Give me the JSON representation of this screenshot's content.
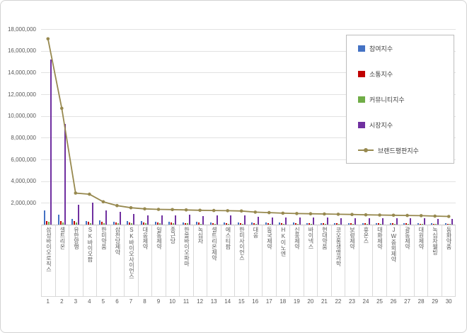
{
  "chart_data": {
    "type": "bar",
    "subtype": "combo-bar-line",
    "title": "",
    "y_axis": {
      "min": 0,
      "max": 18000000,
      "tick_step": 2000000,
      "ticks": [
        {
          "value": 18000000,
          "label": "18,000,000"
        },
        {
          "value": 16000000,
          "label": "16,000,000"
        },
        {
          "value": 14000000,
          "label": "14,000,000"
        },
        {
          "value": 12000000,
          "label": "12,000,000"
        },
        {
          "value": 10000000,
          "label": "10,000,000"
        },
        {
          "value": 8000000,
          "label": "8,000,000"
        },
        {
          "value": 6000000,
          "label": "6,000,000"
        },
        {
          "value": 4000000,
          "label": "4,000,000"
        },
        {
          "value": 2000000,
          "label": "2,000,000"
        }
      ],
      "grid": true
    },
    "legend_position": "right-inside",
    "categories": [
      {
        "rank": 1,
        "label": "삼성바이오로직스"
      },
      {
        "rank": 2,
        "label": "셀트리온"
      },
      {
        "rank": 3,
        "label": "유한양행"
      },
      {
        "rank": 4,
        "label": "SK바이오팜"
      },
      {
        "rank": 5,
        "label": "한미약품"
      },
      {
        "rank": 6,
        "label": "삼천당제약"
      },
      {
        "rank": 7,
        "label": "SK바이오사이언스"
      },
      {
        "rank": 8,
        "label": "대웅제약"
      },
      {
        "rank": 9,
        "label": "일동제약"
      },
      {
        "rank": 10,
        "label": "종근당"
      },
      {
        "rank": 11,
        "label": "한올바이오파마"
      },
      {
        "rank": 12,
        "label": "녹십자"
      },
      {
        "rank": 13,
        "label": "셀트리온제약"
      },
      {
        "rank": 14,
        "label": "에스티팜"
      },
      {
        "rank": 15,
        "label": "한미사이언스"
      },
      {
        "rank": 16,
        "label": "대웅"
      },
      {
        "rank": 17,
        "label": "동국제약"
      },
      {
        "rank": 18,
        "label": "HK이노엔"
      },
      {
        "rank": 19,
        "label": "신풍제약"
      },
      {
        "rank": 20,
        "label": "바이넥스"
      },
      {
        "rank": 21,
        "label": "현대약품"
      },
      {
        "rank": 22,
        "label": "코오롱생명과학"
      },
      {
        "rank": 23,
        "label": "보령제약"
      },
      {
        "rank": 24,
        "label": "휴온스"
      },
      {
        "rank": 25,
        "label": "대화제약"
      },
      {
        "rank": 26,
        "label": "JW중외제약"
      },
      {
        "rank": 27,
        "label": "광동제약"
      },
      {
        "rank": 28,
        "label": "대원제약"
      },
      {
        "rank": 29,
        "label": "녹십자웰빙"
      },
      {
        "rank": 30,
        "label": "동화약품"
      }
    ],
    "series": [
      {
        "name": "참여지수",
        "type": "bar",
        "color": "#4472C4",
        "values": [
          1300000,
          900000,
          500000,
          350000,
          400000,
          250000,
          300000,
          300000,
          250000,
          250000,
          200000,
          250000,
          200000,
          200000,
          180000,
          180000,
          200000,
          180000,
          180000,
          160000,
          150000,
          150000,
          150000,
          140000,
          140000,
          130000,
          130000,
          120000,
          120000,
          110000
        ]
      },
      {
        "name": "소통지수",
        "type": "bar",
        "color": "#C00000",
        "values": [
          350000,
          350000,
          350000,
          250000,
          250000,
          200000,
          200000,
          200000,
          180000,
          180000,
          150000,
          180000,
          150000,
          150000,
          140000,
          140000,
          150000,
          140000,
          130000,
          130000,
          120000,
          120000,
          110000,
          110000,
          100000,
          100000,
          100000,
          90000,
          90000,
          90000
        ]
      },
      {
        "name": "커뮤니티지수",
        "type": "bar",
        "color": "#70AD47",
        "values": [
          250000,
          200000,
          200000,
          150000,
          150000,
          100000,
          100000,
          120000,
          100000,
          100000,
          100000,
          90000,
          80000,
          80000,
          80000,
          80000,
          90000,
          80000,
          70000,
          70000,
          70000,
          60000,
          60000,
          60000,
          60000,
          50000,
          50000,
          50000,
          50000,
          40000
        ]
      },
      {
        "name": "시장지수",
        "type": "bar",
        "color": "#7030A0",
        "values": [
          15200000,
          9250000,
          1850000,
          2050000,
          1300000,
          1200000,
          950000,
          830000,
          870000,
          850000,
          900000,
          800000,
          870000,
          850000,
          850000,
          750000,
          660000,
          650000,
          640000,
          640000,
          640000,
          620000,
          610000,
          590000,
          580000,
          580000,
          560000,
          560000,
          520000,
          510000
        ]
      },
      {
        "name": "브랜드평판지수",
        "type": "line",
        "color": "#97894F",
        "values": [
          17100000,
          10700000,
          2900000,
          2800000,
          2100000,
          1750000,
          1550000,
          1450000,
          1400000,
          1380000,
          1350000,
          1320000,
          1300000,
          1280000,
          1250000,
          1150000,
          1100000,
          1050000,
          1020000,
          1000000,
          980000,
          950000,
          930000,
          900000,
          880000,
          860000,
          840000,
          820000,
          780000,
          750000
        ]
      }
    ]
  }
}
